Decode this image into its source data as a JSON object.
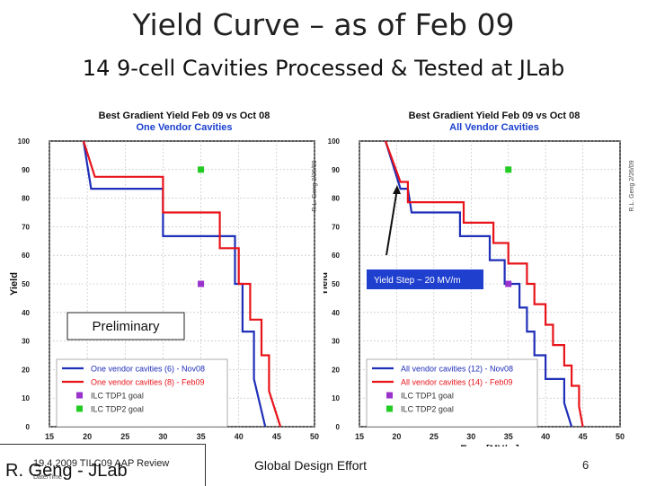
{
  "slide": {
    "title": "Yield Curve – as of Feb 09",
    "subtitle": "14 9-cell Cavities Processed & Tested at JLab",
    "footer": {
      "date": "19.4.2009 TILC09 AAP Review",
      "author": "R. Geng - JLab",
      "notice": "Date/Time",
      "center": "Global Design Effort",
      "page": "6"
    }
  },
  "chart_data": [
    {
      "type": "line",
      "title": "Best Gradient Yield Feb 09 vs Oct 08",
      "subtitle": "One Vendor Cavities",
      "xlabel": "",
      "ylabel": "Yield",
      "xlim": [
        15,
        50
      ],
      "ylim": [
        0,
        100
      ],
      "xticks": [
        15,
        20,
        25,
        30,
        35,
        40,
        45,
        50
      ],
      "yticks": [
        0,
        10,
        20,
        30,
        40,
        50,
        60,
        70,
        80,
        90,
        100
      ],
      "watermark": "R.L. Geng 2/26/09",
      "annotations": [
        {
          "text": "Preliminary"
        }
      ],
      "legend_position": "bottom-left",
      "series": [
        {
          "name": "One vendor cavities (6) - Nov08",
          "color": "#1f2fb8",
          "marker": "line",
          "x": [
            19.5,
            20.5,
            20.5,
            30,
            30,
            32.5,
            32.5,
            35,
            35,
            37.5,
            37.5,
            39.5,
            39.5,
            40.5,
            40.5,
            42,
            42,
            43.5
          ],
          "y": [
            100,
            83.3,
            83.3,
            83.3,
            66.7,
            66.7,
            66.7,
            66.7,
            66.7,
            66.7,
            66.7,
            66.7,
            50,
            50,
            33.3,
            33.3,
            16.7,
            0
          ]
        },
        {
          "name": "One vendor cavities (8) - Feb09",
          "color": "#e8141a",
          "marker": "line",
          "x": [
            19.5,
            21,
            21,
            30,
            30,
            33.5,
            33.5,
            37.5,
            37.5,
            40,
            40,
            41.5,
            41.5,
            43,
            43,
            44,
            44,
            45.5
          ],
          "y": [
            100,
            87.5,
            87.5,
            87.5,
            75,
            75,
            75,
            75,
            62.5,
            62.5,
            50,
            50,
            37.5,
            37.5,
            25,
            25,
            12.5,
            0
          ]
        },
        {
          "name": "ILC TDP1 goal",
          "color": "#9933cc",
          "marker": "square",
          "x": [
            35
          ],
          "y": [
            50
          ]
        },
        {
          "name": "ILC TDP2 goal",
          "color": "#22cc22",
          "marker": "square",
          "x": [
            35
          ],
          "y": [
            90
          ]
        }
      ]
    },
    {
      "type": "line",
      "title": "Best Gradient Yield Feb 09 vs Oct 08",
      "subtitle": "All Vendor Cavities",
      "xlabel": "Eacc [MV/m]",
      "ylabel": "Yield",
      "xlim": [
        15,
        50
      ],
      "ylim": [
        0,
        100
      ],
      "xticks": [
        15,
        20,
        25,
        30,
        35,
        40,
        45,
        50
      ],
      "yticks": [
        0,
        10,
        20,
        30,
        40,
        50,
        60,
        70,
        80,
        90,
        100
      ],
      "watermark": "R.L. Geng 2/26/09",
      "annotations": [
        {
          "text": "Yield Step ~ 20 MV/m"
        }
      ],
      "legend_position": "bottom-left",
      "series": [
        {
          "name": "All vendor cavities (12) - Nov08",
          "color": "#1f2fb8",
          "marker": "line",
          "x": [
            18.5,
            19.5,
            19.5,
            20.5,
            20.5,
            21.5,
            21.5,
            22,
            22,
            23,
            23,
            28.5,
            28.5,
            32.5,
            32.5,
            34.5,
            34.5,
            36.5,
            36.5,
            37.5,
            37.5,
            38.5,
            38.5,
            40,
            40,
            42.5,
            42.5,
            43.5
          ],
          "y": [
            100,
            91.7,
            91.7,
            83.3,
            83.3,
            83.3,
            83.3,
            75,
            75,
            75,
            75,
            75,
            66.7,
            66.7,
            58.3,
            58.3,
            50,
            50,
            41.7,
            41.7,
            33.3,
            33.3,
            25,
            25,
            16.7,
            16.7,
            8.3,
            0
          ]
        },
        {
          "name": "All vendor cavities (14) - Feb09",
          "color": "#e8141a",
          "marker": "line",
          "x": [
            18.5,
            20.5,
            20.5,
            21.5,
            21.5,
            23,
            23,
            29,
            29,
            33,
            33,
            35,
            35,
            37.5,
            37.5,
            38.5,
            38.5,
            40,
            40,
            41,
            41,
            42.5,
            42.5,
            43.5,
            43.5,
            44.5,
            44.5,
            45
          ],
          "y": [
            100,
            85.7,
            85.7,
            85.7,
            78.6,
            78.6,
            78.6,
            78.6,
            71.4,
            71.4,
            64.3,
            64.3,
            57.1,
            57.1,
            50,
            50,
            42.9,
            42.9,
            35.7,
            35.7,
            28.6,
            28.6,
            21.4,
            21.4,
            14.3,
            14.3,
            7.1,
            0
          ]
        },
        {
          "name": "ILC TDP1 goal",
          "color": "#9933cc",
          "marker": "square",
          "x": [
            35
          ],
          "y": [
            50
          ]
        },
        {
          "name": "ILC TDP2 goal",
          "color": "#22cc22",
          "marker": "square",
          "x": [
            35
          ],
          "y": [
            90
          ]
        }
      ]
    }
  ]
}
